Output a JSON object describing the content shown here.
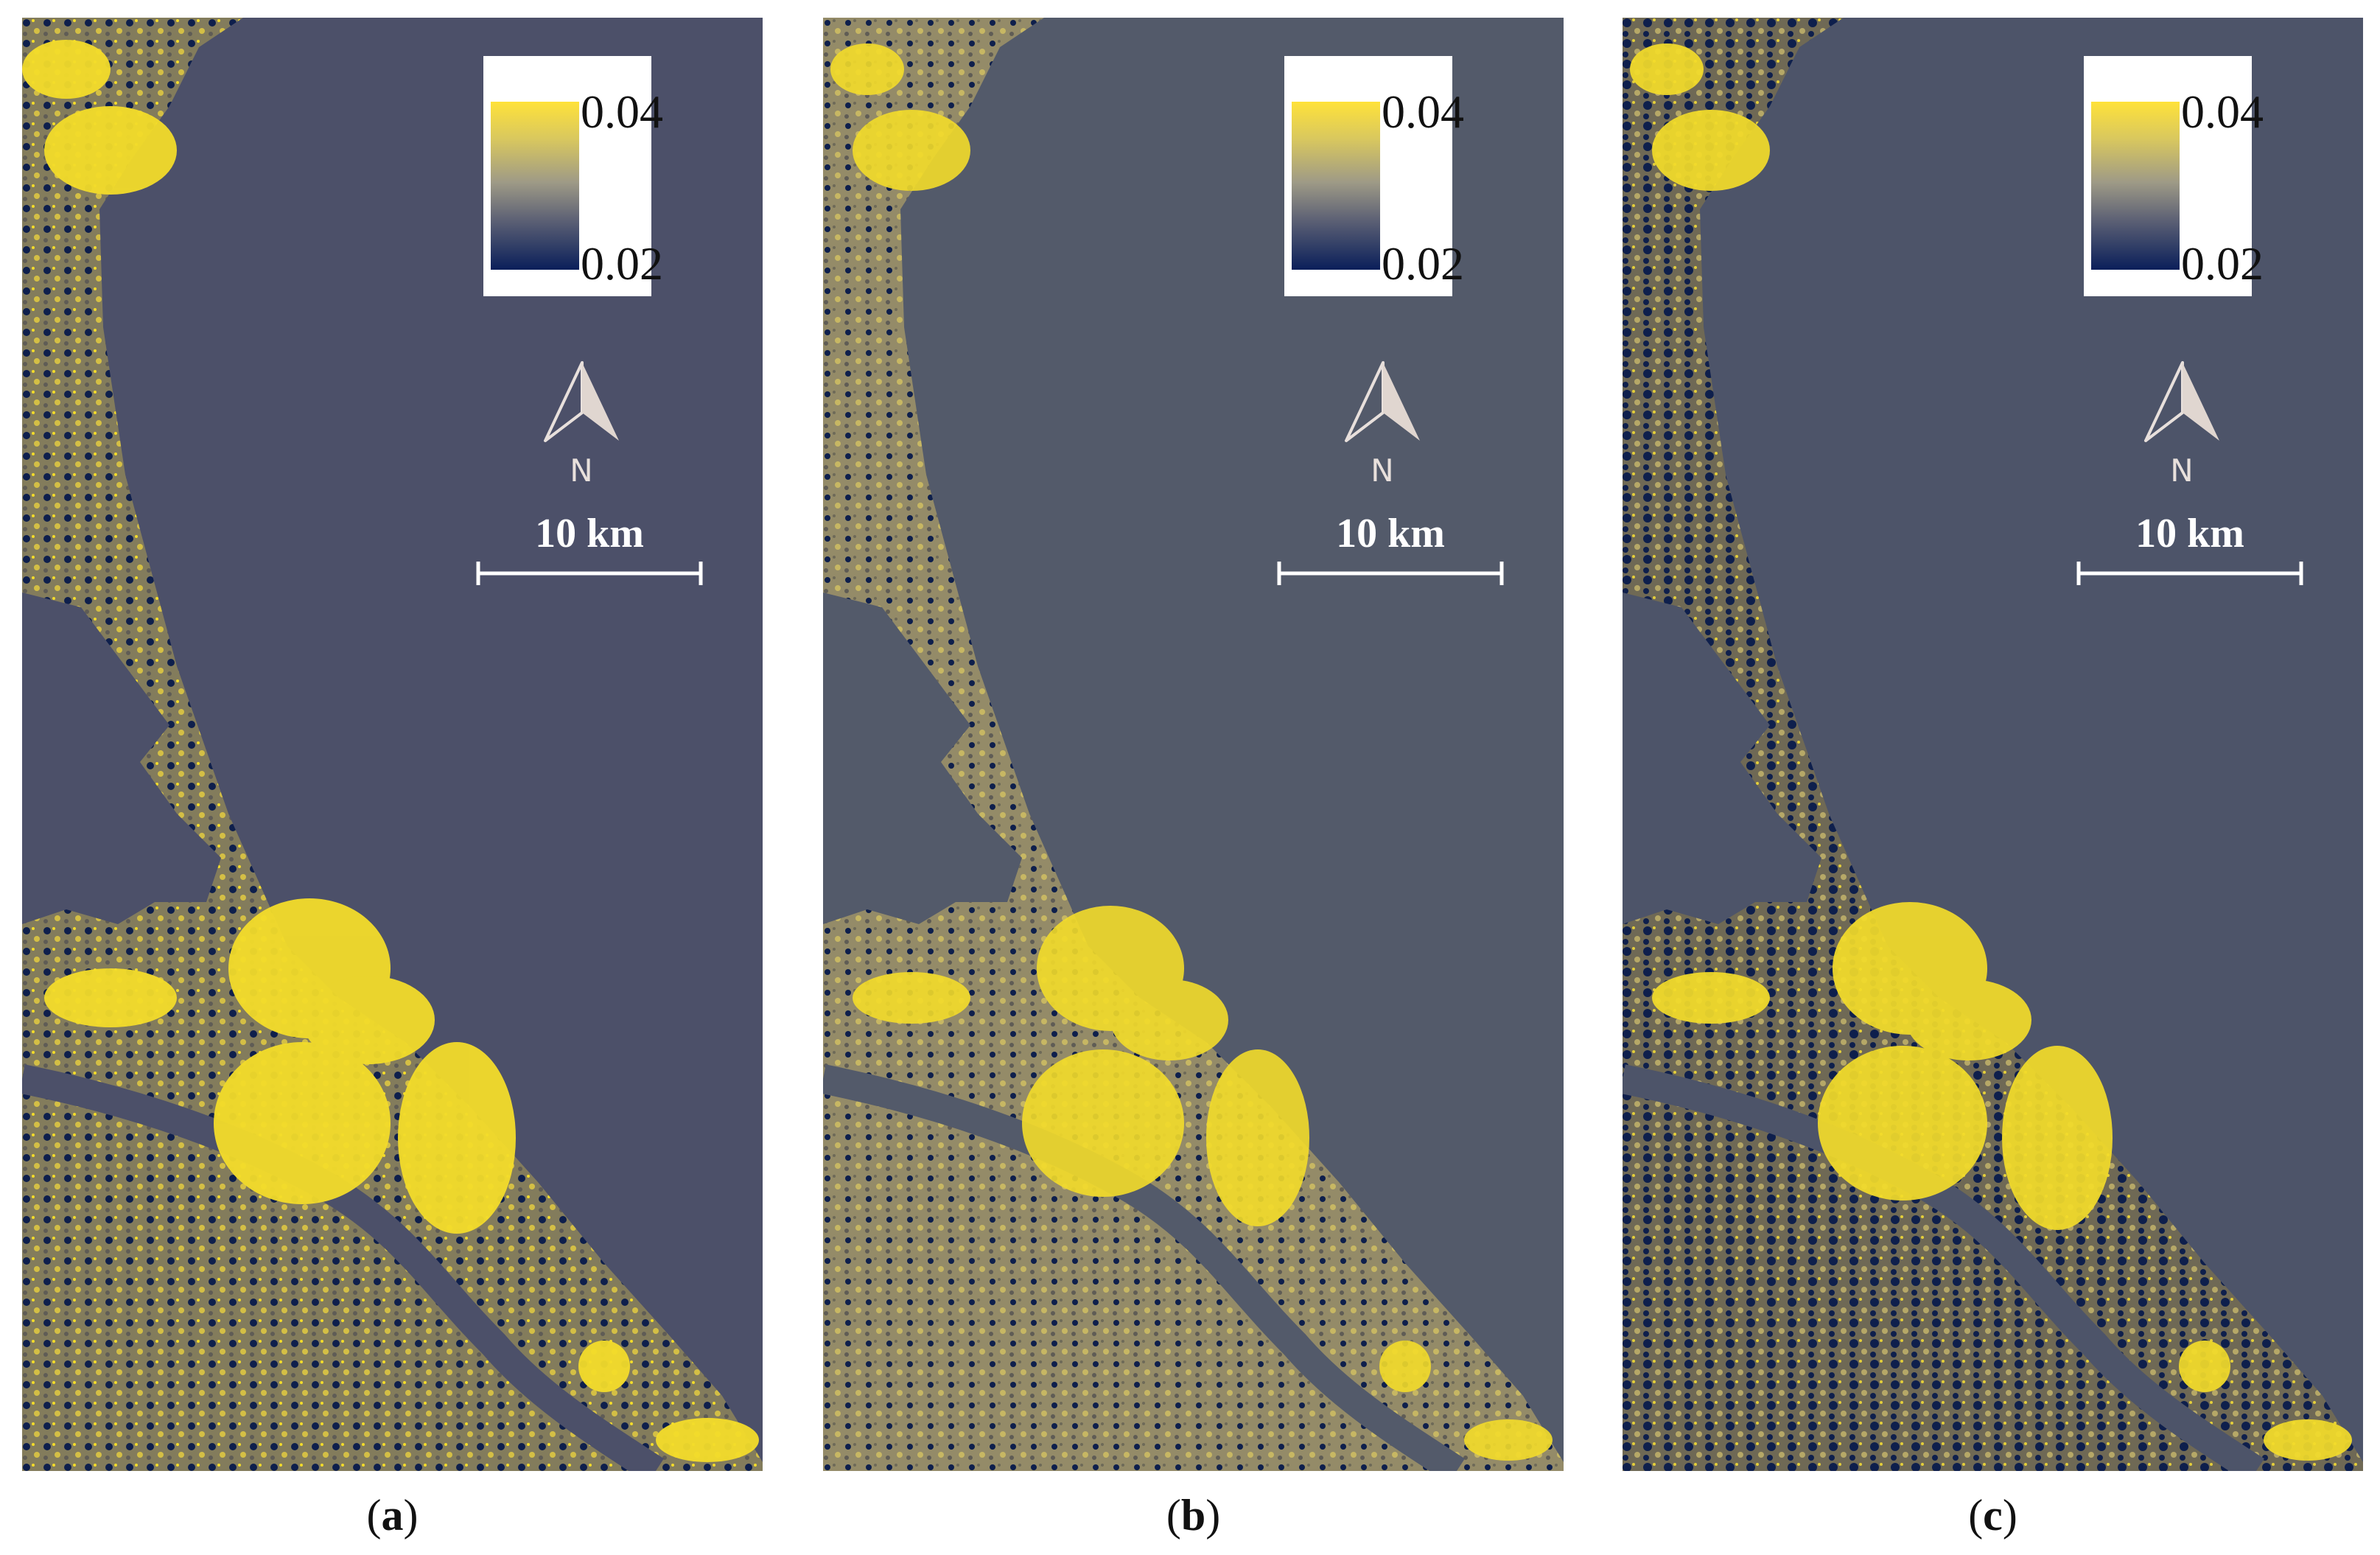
{
  "panels": [
    {
      "id": "a",
      "caption_letter": "a",
      "sea_color": "#4c5069"
    },
    {
      "id": "b",
      "caption_letter": "b",
      "sea_color": "#535a6a"
    },
    {
      "id": "c",
      "caption_letter": "c",
      "sea_color": "#4d5469"
    }
  ],
  "legend": {
    "max_label": "0.04",
    "min_label": "0.02",
    "colors": {
      "high": "#ffe23a",
      "mid": "#9e9a86",
      "low": "#0a1f5a"
    }
  },
  "north_arrow": {
    "label": "N",
    "icon": "north-arrow-icon"
  },
  "scale_bar": {
    "label": "10 km"
  },
  "land_colors": {
    "urban": "#f3dc2a",
    "vegetation": "#8c8563",
    "dark": "#0e1f4c",
    "mixed": "#6e6a58"
  }
}
